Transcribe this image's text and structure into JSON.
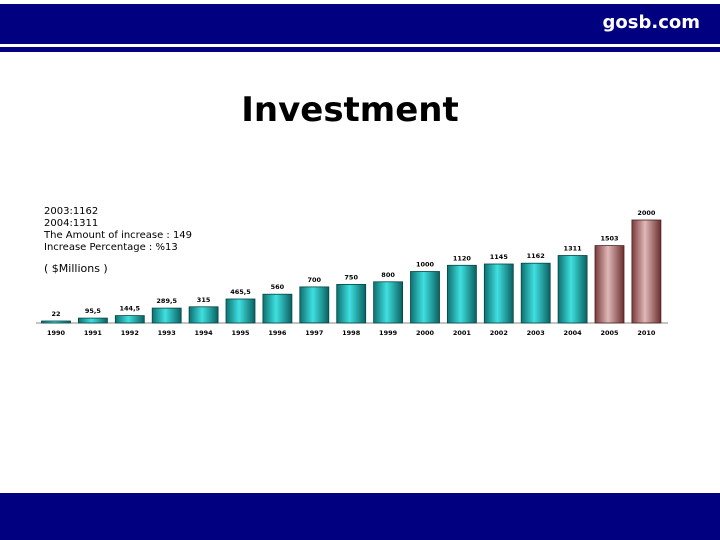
{
  "header": {
    "brand": "gosb.com"
  },
  "slide": {
    "title": "Investment"
  },
  "notes": {
    "lines": [
      "2003:1162",
      "2004:1311",
      "The Amount of increase : 149",
      "Increase Percentage : %13"
    ],
    "units": "( $Millions )"
  },
  "colors": {
    "bar_blue": "#20bfbf",
    "bar_red": "#a86a6a",
    "navy": "#000080"
  },
  "chart_data": {
    "type": "bar",
    "categories": [
      "1990",
      "1991",
      "1992",
      "1993",
      "1994",
      "1995",
      "1996",
      "1997",
      "1998",
      "1999",
      "2000",
      "2001",
      "2002",
      "2003",
      "2004",
      "2005",
      "2010"
    ],
    "values": [
      22,
      95.5,
      144.5,
      289.5,
      315,
      465.5,
      560,
      700,
      750,
      800,
      1000,
      1120,
      1145,
      1162,
      1311,
      1503,
      2000
    ],
    "value_labels": [
      "22",
      "95,5",
      "144,5",
      "289,5",
      "315",
      "465,5",
      "560",
      "700",
      "750",
      "800",
      "1000",
      "1120",
      "1145",
      "1162",
      "1311",
      "1503",
      "2000"
    ],
    "highlighted": [
      "2005",
      "2010"
    ],
    "ylim": [
      0,
      2000
    ],
    "grid": false,
    "title": "",
    "xlabel": "",
    "ylabel": ""
  }
}
